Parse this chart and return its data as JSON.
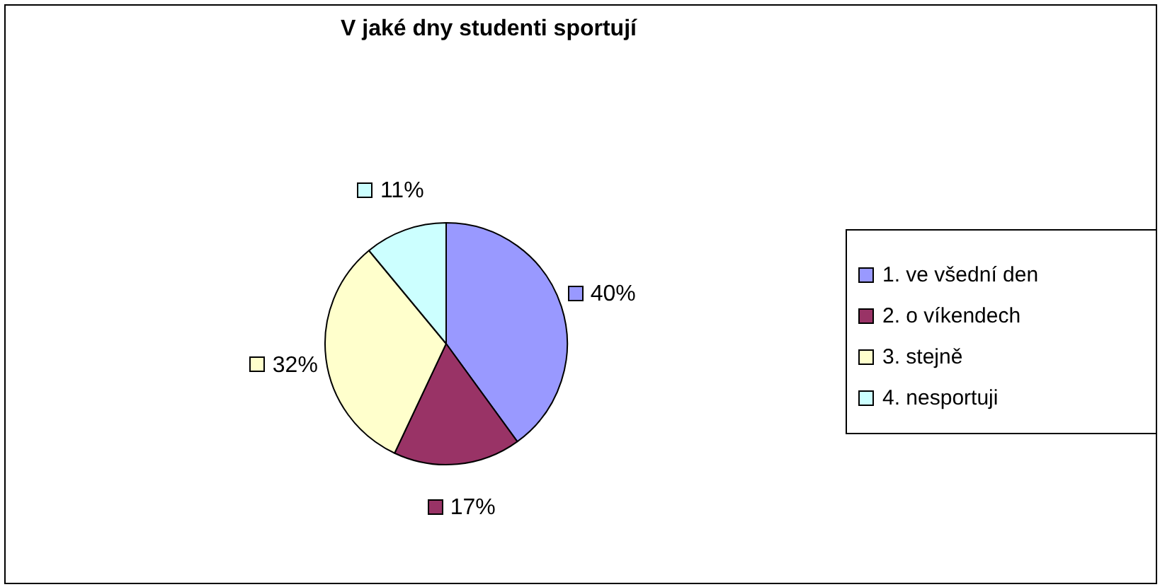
{
  "chart_data": {
    "type": "pie",
    "title": "V jaké dny studenti sportují",
    "categories": [
      "1. ve všední den",
      "2. o víkendech",
      "3. stejně",
      "4. nesportuji"
    ],
    "values": [
      40,
      17,
      32,
      11
    ],
    "colors": [
      "#9999ff",
      "#993366",
      "#ffffcc",
      "#ccffff"
    ],
    "value_labels": [
      "40%",
      "17%",
      "32%",
      "11%"
    ],
    "legend": "right"
  }
}
